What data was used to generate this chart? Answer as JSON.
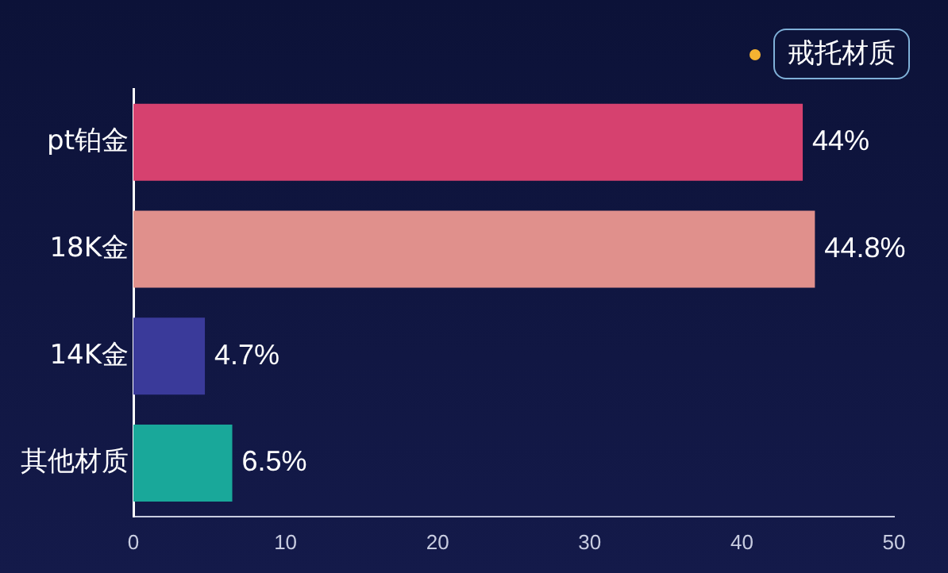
{
  "chart_data": {
    "type": "bar",
    "orientation": "horizontal",
    "categories": [
      "pt铂金",
      "18K金",
      "14K金",
      "其他材质"
    ],
    "series": [
      {
        "name": "戒托材质",
        "color": "#f5b331",
        "colors": [
          "#d6416f",
          "#e0908c",
          "#3a3a9a",
          "#19a89a"
        ],
        "values": [
          44,
          44.8,
          4.7,
          6.5
        ],
        "value_labels": [
          "44%",
          "44.8%",
          "4.7%",
          "6.5%"
        ]
      }
    ],
    "xlim": [
      0,
      50
    ],
    "xticks": [
      0,
      10,
      20,
      30,
      40,
      50
    ],
    "grid": false,
    "legend": "top right"
  }
}
